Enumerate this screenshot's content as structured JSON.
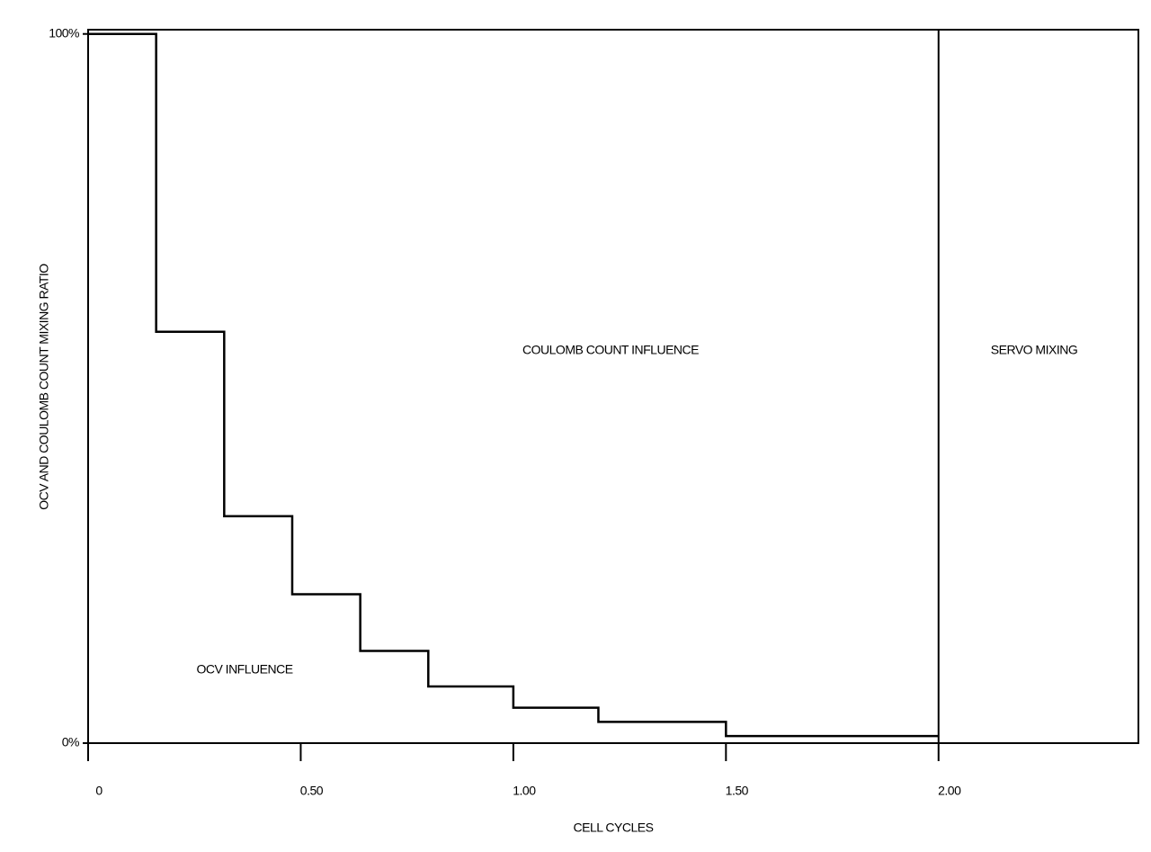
{
  "chart_data": {
    "type": "step",
    "x_label": "CELL CYCLES",
    "y_label": "OCV AND COULOMB COUNT MIXING RATIO",
    "x": [
      0,
      0.16,
      0.32,
      0.48,
      0.64,
      0.8,
      1.0,
      1.2,
      1.5,
      2.0
    ],
    "values": [
      100,
      58,
      32,
      21,
      13,
      8,
      5,
      3,
      1,
      1
    ],
    "color": "#000000",
    "xlim": [
      0,
      2.47
    ],
    "ylim": [
      0,
      100.6
    ],
    "xticks": [
      0,
      {
        "value": 0.5,
        "label": "0.50"
      },
      {
        "value": 1.0,
        "label": "1.00"
      },
      {
        "value": 1.5,
        "label": "1.50"
      },
      {
        "value": 2.0,
        "label": "2.00"
      }
    ],
    "yticks": [
      {
        "value": 0,
        "label": "0%"
      },
      {
        "value": 100,
        "label": "100%"
      }
    ],
    "vlines": [
      2.0
    ],
    "annotations": [
      "COULOMB COUNT INFLUENCE",
      "SERVO MIXING",
      "OCV INFLUENCE"
    ]
  }
}
